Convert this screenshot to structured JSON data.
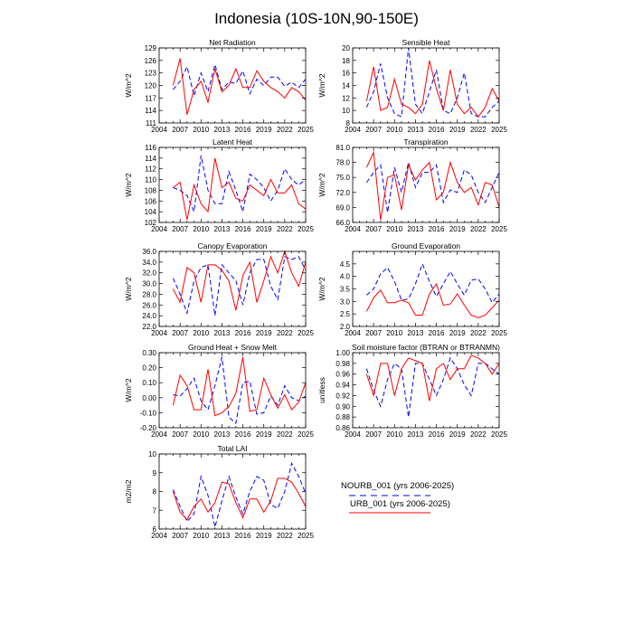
{
  "figure": {
    "title": "Indonesia (10S-10N,90-150E)"
  },
  "legend": {
    "entries": [
      {
        "label": "NOURB_001 (yrs 2006-2025)",
        "color": "#0000ff",
        "dash": "dashed"
      },
      {
        "label": "URB_001 (yrs 2006-2025)",
        "color": "#ff0000",
        "dash": "solid"
      }
    ]
  },
  "chart_data": [
    {
      "type": "line",
      "title": "Net Radiation",
      "ylabel": "W/m^2",
      "xlim": [
        2004,
        2025
      ],
      "ylim": [
        111,
        129
      ],
      "xticks": [
        2004,
        2007,
        2010,
        2013,
        2016,
        2019,
        2022,
        2025
      ],
      "xticklabels": [
        "2004",
        "2007",
        "2010",
        "2013",
        "2016",
        "2019",
        "2022",
        "2025"
      ],
      "yticks": [
        111,
        114,
        117,
        120,
        123,
        126,
        129
      ],
      "yticklabels": [
        "111",
        "114",
        "117",
        "120",
        "123",
        "126",
        "129"
      ],
      "x": [
        2006,
        2007,
        2008,
        2009,
        2010,
        2011,
        2012,
        2013,
        2014,
        2015,
        2016,
        2017,
        2018,
        2019,
        2020,
        2021,
        2022,
        2023,
        2024,
        2025
      ],
      "series": [
        {
          "name": "NOURB_001 (yrs 2006-2025)",
          "values": [
            119,
            121,
            124.5,
            117.5,
            123,
            118.5,
            125,
            119,
            120.8,
            120.5,
            123.5,
            118,
            121.5,
            120,
            122,
            122,
            119.8,
            120.8,
            119.5,
            121.5
          ]
        },
        {
          "name": "URB_001 (yrs 2006-2025)",
          "values": [
            120,
            126.5,
            113,
            119,
            121,
            116,
            124,
            118.5,
            120,
            124,
            119.5,
            119.5,
            123.5,
            121,
            119.5,
            118.5,
            117,
            119.5,
            118.5,
            116.5
          ]
        }
      ]
    },
    {
      "type": "line",
      "title": "Sensible Heat",
      "ylabel": "W/m^2",
      "xlim": [
        2004,
        2025
      ],
      "ylim": [
        8,
        20
      ],
      "xticks": [
        2004,
        2007,
        2010,
        2013,
        2016,
        2019,
        2022,
        2025
      ],
      "xticklabels": [
        "2004",
        "2007",
        "2010",
        "2013",
        "2016",
        "2019",
        "2022",
        "2025"
      ],
      "yticks": [
        8,
        10,
        12,
        14,
        16,
        18,
        20
      ],
      "yticklabels": [
        "8",
        "10",
        "12",
        "14",
        "16",
        "18",
        "20"
      ],
      "x": [
        2006,
        2007,
        2008,
        2009,
        2010,
        2011,
        2012,
        2013,
        2014,
        2015,
        2016,
        2017,
        2018,
        2019,
        2020,
        2021,
        2022,
        2023,
        2024,
        2025
      ],
      "series": [
        {
          "name": "NOURB_001 (yrs 2006-2025)",
          "values": [
            10.5,
            13,
            17.5,
            12,
            9.5,
            9,
            20,
            11,
            9.5,
            13,
            16.5,
            10,
            9.5,
            12,
            16,
            9.5,
            9,
            9,
            10.5,
            11.5
          ]
        },
        {
          "name": "URB_001 (yrs 2006-2025)",
          "values": [
            11.5,
            17,
            10,
            10.5,
            15,
            11,
            10.5,
            9.5,
            11,
            18,
            13.5,
            10,
            16.5,
            11,
            9.5,
            10.5,
            9,
            10.5,
            13.5,
            11.5
          ]
        }
      ]
    },
    {
      "type": "line",
      "title": "Latent Heat",
      "ylabel": "W/m^2",
      "xlim": [
        2004,
        2025
      ],
      "ylim": [
        102,
        116
      ],
      "xticks": [
        2004,
        2007,
        2010,
        2013,
        2016,
        2019,
        2022,
        2025
      ],
      "xticklabels": [
        "2004",
        "2007",
        "2010",
        "2013",
        "2016",
        "2019",
        "2022",
        "2025"
      ],
      "yticks": [
        102,
        104,
        106,
        108,
        110,
        112,
        114,
        116
      ],
      "yticklabels": [
        "102",
        "104",
        "106",
        "108",
        "110",
        "112",
        "114",
        "116"
      ],
      "x": [
        2006,
        2007,
        2008,
        2009,
        2010,
        2011,
        2012,
        2013,
        2014,
        2015,
        2016,
        2017,
        2018,
        2019,
        2020,
        2021,
        2022,
        2023,
        2024,
        2025
      ],
      "series": [
        {
          "name": "NOURB_001 (yrs 2006-2025)",
          "values": [
            108.5,
            108,
            107,
            104,
            114.5,
            108,
            105.5,
            105.5,
            111.5,
            108,
            104,
            111,
            110,
            108.5,
            106,
            108,
            112,
            110,
            109,
            110
          ]
        },
        {
          "name": "URB_001 (yrs 2006-2025)",
          "values": [
            108.5,
            109.5,
            102.5,
            109,
            105.5,
            104,
            114,
            108.5,
            109.5,
            106.5,
            106,
            109,
            108,
            107,
            110,
            107.5,
            107.5,
            109,
            105.5,
            104.5
          ]
        }
      ]
    },
    {
      "type": "line",
      "title": "Transpiration",
      "ylabel": "W/m^2",
      "xlim": [
        2004,
        2025
      ],
      "ylim": [
        66,
        81
      ],
      "xticks": [
        2004,
        2007,
        2010,
        2013,
        2016,
        2019,
        2022,
        2025
      ],
      "xticklabels": [
        "2004",
        "2007",
        "2010",
        "2013",
        "2016",
        "2019",
        "2022",
        "2025"
      ],
      "yticks": [
        66,
        69,
        72,
        75,
        78,
        81
      ],
      "yticklabels": [
        "66.0",
        "69.0",
        "72.0",
        "75.0",
        "78.0",
        "81.0"
      ],
      "x": [
        2006,
        2007,
        2008,
        2009,
        2010,
        2011,
        2012,
        2013,
        2014,
        2015,
        2016,
        2017,
        2018,
        2019,
        2020,
        2021,
        2022,
        2023,
        2024,
        2025
      ],
      "series": [
        {
          "name": "NOURB_001 (yrs 2006-2025)",
          "values": [
            74,
            76,
            77.5,
            68,
            77,
            72,
            78,
            73,
            76,
            76,
            77.5,
            70,
            72.5,
            72,
            76.5,
            75.5,
            72,
            70,
            73,
            76
          ]
        },
        {
          "name": "URB_001 (yrs 2006-2025)",
          "values": [
            77,
            80,
            66.5,
            75,
            75.5,
            68.5,
            77.5,
            74.5,
            76.5,
            78,
            70.5,
            72,
            78,
            74,
            72,
            73,
            69.5,
            74,
            73.5,
            69
          ]
        }
      ]
    },
    {
      "type": "line",
      "title": "Canopy Evaporation",
      "ylabel": "W/m^2",
      "xlim": [
        2004,
        2025
      ],
      "ylim": [
        22,
        36
      ],
      "xticks": [
        2004,
        2007,
        2010,
        2013,
        2016,
        2019,
        2022,
        2025
      ],
      "xticklabels": [
        "2004",
        "2007",
        "2010",
        "2013",
        "2016",
        "2019",
        "2022",
        "2025"
      ],
      "yticks": [
        22,
        24,
        26,
        28,
        30,
        32,
        34,
        36
      ],
      "yticklabels": [
        "22.0",
        "24.0",
        "26.0",
        "28.0",
        "30.0",
        "32.0",
        "34.0",
        "36.0"
      ],
      "x": [
        2006,
        2007,
        2008,
        2009,
        2010,
        2011,
        2012,
        2013,
        2014,
        2015,
        2016,
        2017,
        2018,
        2019,
        2020,
        2021,
        2022,
        2023,
        2024,
        2025
      ],
      "series": [
        {
          "name": "NOURB_001 (yrs 2006-2025)",
          "values": [
            31,
            28,
            24.5,
            30.5,
            33,
            33.5,
            24,
            33.5,
            32,
            30.5,
            26,
            32,
            34.5,
            34.5,
            29.5,
            27,
            35,
            34.5,
            35,
            32.5
          ]
        },
        {
          "name": "URB_001 (yrs 2006-2025)",
          "values": [
            29,
            26.5,
            33,
            32,
            26.5,
            33.5,
            33.5,
            32.5,
            30.5,
            25,
            31.5,
            34,
            26.5,
            30.5,
            35,
            32,
            36,
            32,
            29.5,
            34
          ]
        }
      ]
    },
    {
      "type": "line",
      "title": "Ground Evaporation",
      "ylabel": "W/m^2",
      "xlim": [
        2004,
        2025
      ],
      "ylim": [
        2,
        5
      ],
      "xticks": [
        2004,
        2007,
        2010,
        2013,
        2016,
        2019,
        2022,
        2025
      ],
      "xticklabels": [
        "2004",
        "2007",
        "2010",
        "2013",
        "2016",
        "2019",
        "2022",
        "2025"
      ],
      "yticks": [
        2,
        2.5,
        3,
        3.5,
        4,
        4.5
      ],
      "yticklabels": [
        "2.0",
        "2.5",
        "3.0",
        "3.5",
        "4.0",
        "4.5"
      ],
      "x": [
        2006,
        2007,
        2008,
        2009,
        2010,
        2011,
        2012,
        2013,
        2014,
        2015,
        2016,
        2017,
        2018,
        2019,
        2020,
        2021,
        2022,
        2023,
        2024,
        2025
      ],
      "series": [
        {
          "name": "NOURB_001 (yrs 2006-2025)",
          "values": [
            3.25,
            3.5,
            4.1,
            4.35,
            3.8,
            3.05,
            3.1,
            3.7,
            4.5,
            3.8,
            3.2,
            3.7,
            4.2,
            3.7,
            3.25,
            3.85,
            3.9,
            3.5,
            2.95,
            3.3
          ]
        },
        {
          "name": "URB_001 (yrs 2006-2025)",
          "values": [
            2.6,
            3.15,
            3.45,
            2.95,
            2.95,
            3.05,
            2.95,
            2.45,
            2.45,
            3.3,
            3.7,
            2.85,
            2.9,
            3.3,
            2.85,
            2.45,
            2.35,
            2.45,
            2.75,
            3.05
          ]
        }
      ]
    },
    {
      "type": "line",
      "title": "Ground Heat + Snow Melt",
      "ylabel": "W/m^2",
      "xlim": [
        2004,
        2025
      ],
      "ylim": [
        -0.2,
        0.3
      ],
      "xticks": [
        2004,
        2007,
        2010,
        2013,
        2016,
        2019,
        2022,
        2025
      ],
      "xticklabels": [
        "2004",
        "2007",
        "2010",
        "2013",
        "2016",
        "2019",
        "2022",
        "2025"
      ],
      "yticks": [
        -0.2,
        -0.1,
        0,
        0.1,
        0.2,
        0.3
      ],
      "yticklabels": [
        "-0.20",
        "-0.10",
        "0.00",
        "0.10",
        "0.20",
        "0.30"
      ],
      "x": [
        2006,
        2007,
        2008,
        2009,
        2010,
        2011,
        2012,
        2013,
        2014,
        2015,
        2016,
        2017,
        2018,
        2019,
        2020,
        2021,
        2022,
        2023,
        2024,
        2025
      ],
      "series": [
        {
          "name": "NOURB_001 (yrs 2006-2025)",
          "values": [
            0.02,
            0.01,
            0.06,
            0.13,
            -0.02,
            -0.08,
            0.08,
            0.27,
            -0.13,
            -0.17,
            0.1,
            0.11,
            -0.11,
            -0.1,
            0.01,
            -0.05,
            0.08,
            0.0,
            -0.02,
            0.01
          ]
        },
        {
          "name": "URB_001 (yrs 2006-2025)",
          "values": [
            -0.05,
            0.15,
            0.08,
            -0.08,
            -0.08,
            0.19,
            -0.12,
            -0.1,
            -0.06,
            0.03,
            0.27,
            -0.09,
            -0.08,
            0.13,
            0.02,
            -0.07,
            0.02,
            -0.08,
            -0.03,
            0.1
          ]
        }
      ]
    },
    {
      "type": "line",
      "title": "Soil moisture factor (BTRAN or BTRANMN)",
      "ylabel": "unitless",
      "xlim": [
        2004,
        2025
      ],
      "ylim": [
        0.86,
        1.0
      ],
      "xticks": [
        2004,
        2007,
        2010,
        2013,
        2016,
        2019,
        2022,
        2025
      ],
      "xticklabels": [
        "2004",
        "2007",
        "2010",
        "2013",
        "2016",
        "2019",
        "2022",
        "2025"
      ],
      "yticks": [
        0.86,
        0.88,
        0.9,
        0.92,
        0.94,
        0.96,
        0.98,
        1.0
      ],
      "yticklabels": [
        "0.86",
        "0.88",
        "0.90",
        "0.92",
        "0.94",
        "0.96",
        "0.98",
        "1.00"
      ],
      "x": [
        2006,
        2007,
        2008,
        2009,
        2010,
        2011,
        2012,
        2013,
        2014,
        2015,
        2016,
        2017,
        2018,
        2019,
        2020,
        2021,
        2022,
        2023,
        2024,
        2025
      ],
      "series": [
        {
          "name": "NOURB_001 (yrs 2006-2025)",
          "values": [
            0.97,
            0.93,
            0.9,
            0.95,
            0.98,
            0.97,
            0.88,
            0.98,
            0.98,
            0.95,
            0.92,
            0.95,
            0.99,
            0.97,
            0.94,
            0.92,
            0.98,
            0.98,
            0.97,
            0.96
          ]
        },
        {
          "name": "URB_001 (yrs 2006-2025)",
          "values": [
            0.96,
            0.92,
            0.98,
            0.98,
            0.92,
            0.97,
            0.99,
            0.985,
            0.98,
            0.91,
            0.97,
            0.98,
            0.95,
            0.97,
            0.97,
            0.995,
            0.99,
            0.98,
            0.96,
            0.98
          ]
        }
      ]
    },
    {
      "type": "line",
      "title": "Total LAI",
      "ylabel": "m2/m2",
      "xlim": [
        2004,
        2025
      ],
      "ylim": [
        6,
        10
      ],
      "xticks": [
        2004,
        2007,
        2010,
        2013,
        2016,
        2019,
        2022,
        2025
      ],
      "xticklabels": [
        "2004",
        "2007",
        "2010",
        "2013",
        "2016",
        "2019",
        "2022",
        "2025"
      ],
      "yticks": [
        6,
        7,
        8,
        9,
        10
      ],
      "yticklabels": [
        "6",
        "7",
        "8",
        "9",
        "10"
      ],
      "x": [
        2006,
        2007,
        2008,
        2009,
        2010,
        2011,
        2012,
        2013,
        2014,
        2015,
        2016,
        2017,
        2018,
        2019,
        2020,
        2021,
        2022,
        2023,
        2024,
        2025
      ],
      "series": [
        {
          "name": "NOURB_001 (yrs 2006-2025)",
          "values": [
            8.1,
            7.2,
            6.4,
            6.8,
            8.8,
            7.8,
            6.1,
            7.5,
            8.8,
            7.7,
            6.8,
            8.0,
            8.8,
            8.6,
            7.3,
            7.1,
            8.0,
            9.5,
            8.8,
            7.9
          ]
        },
        {
          "name": "URB_001 (yrs 2006-2025)",
          "values": [
            8.0,
            6.9,
            6.5,
            7.2,
            7.6,
            6.9,
            7.4,
            8.5,
            8.4,
            7.4,
            6.6,
            7.6,
            7.6,
            6.9,
            7.5,
            8.7,
            8.7,
            8.5,
            7.9,
            7.2
          ]
        }
      ]
    }
  ]
}
